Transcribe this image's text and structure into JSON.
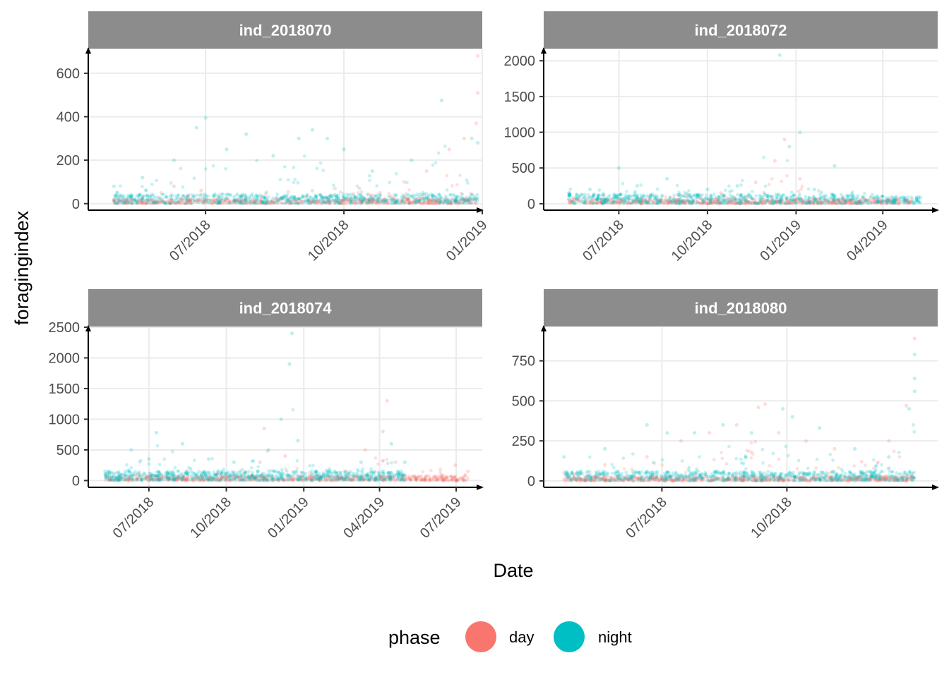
{
  "colors": {
    "day": "#F8766D",
    "night": "#00BFC4",
    "strip": "#8C8C8C",
    "grid": "#EBEBEB"
  },
  "labels": {
    "xlabel": "Date",
    "ylabel": "foragingindex"
  },
  "legend": {
    "title": "phase",
    "position": "bottom",
    "entries": [
      {
        "key": "day",
        "label": "day"
      },
      {
        "key": "night",
        "label": "night"
      }
    ]
  },
  "chart_data": [
    {
      "type": "scatter",
      "title": "ind_2018070",
      "xlim": [
        "2018-04-14",
        "2019-01-01"
      ],
      "ylim": [
        -30,
        710
      ],
      "yticks": [
        0,
        200,
        400,
        600
      ],
      "yticklabels": [
        "0",
        "200",
        "400",
        "600"
      ],
      "xticks": [
        "2018-07-01",
        "2018-10-01",
        "2019-01-01"
      ],
      "xticklabels": [
        "07/2018",
        "10/2018",
        "01/2019"
      ],
      "grid": true,
      "series": [
        {
          "name": "day",
          "points": [
            [
              "2018-05-01",
              20
            ],
            [
              "2018-05-20",
              30
            ],
            [
              "2018-06-10",
              80
            ],
            [
              "2018-06-28",
              60
            ],
            [
              "2018-07-10",
              40
            ],
            [
              "2018-07-25",
              35
            ],
            [
              "2018-08-10",
              45
            ],
            [
              "2018-08-25",
              55
            ],
            [
              "2018-09-10",
              60
            ],
            [
              "2018-09-25",
              70
            ],
            [
              "2018-10-10",
              80
            ],
            [
              "2018-10-25",
              50
            ],
            [
              "2018-11-10",
              100
            ],
            [
              "2018-11-25",
              150
            ],
            [
              "2018-12-10",
              250
            ],
            [
              "2018-12-20",
              300
            ],
            [
              "2018-12-28",
              370
            ],
            [
              "2018-12-29",
              510
            ],
            [
              "2018-12-29",
              680
            ]
          ]
        },
        {
          "name": "night",
          "points": [
            [
              "2018-05-01",
              80
            ],
            [
              "2018-05-20",
              120
            ],
            [
              "2018-06-10",
              200
            ],
            [
              "2018-06-25",
              350
            ],
            [
              "2018-07-01",
              395
            ],
            [
              "2018-07-15",
              250
            ],
            [
              "2018-07-28",
              320
            ],
            [
              "2018-08-15",
              220
            ],
            [
              "2018-09-01",
              300
            ],
            [
              "2018-09-10",
              340
            ],
            [
              "2018-09-20",
              300
            ],
            [
              "2018-10-01",
              250
            ],
            [
              "2018-10-20",
              150
            ],
            [
              "2018-11-15",
              200
            ],
            [
              "2018-12-05",
              475
            ],
            [
              "2018-12-25",
              300
            ],
            [
              "2018-12-29",
              280
            ]
          ]
        }
      ]
    },
    {
      "type": "scatter",
      "title": "ind_2018072",
      "xlim": [
        "2018-04-14",
        "2019-05-28"
      ],
      "ylim": [
        -90,
        2160
      ],
      "yticks": [
        0,
        500,
        1000,
        1500,
        2000
      ],
      "yticklabels": [
        "0",
        "500",
        "1000",
        "1500",
        "2000"
      ],
      "xticks": [
        "2018-07-01",
        "2018-10-01",
        "2019-01-01",
        "2019-04-01"
      ],
      "xticklabels": [
        "07/2018",
        "10/2018",
        "01/2019",
        "04/2019"
      ],
      "grid": true,
      "series": [
        {
          "name": "day",
          "points": [
            [
              "2018-05-10",
              60
            ],
            [
              "2018-06-15",
              120
            ],
            [
              "2018-07-20",
              100
            ],
            [
              "2018-09-01",
              120
            ],
            [
              "2018-10-15",
              150
            ],
            [
              "2018-11-20",
              300
            ],
            [
              "2018-12-10",
              600
            ],
            [
              "2018-12-20",
              900
            ],
            [
              "2019-01-05",
              350
            ],
            [
              "2019-02-20",
              60
            ],
            [
              "2019-03-20",
              80
            ],
            [
              "2019-05-01",
              60
            ]
          ]
        },
        {
          "name": "night",
          "points": [
            [
              "2018-05-10",
              150
            ],
            [
              "2018-06-01",
              200
            ],
            [
              "2018-07-01",
              500
            ],
            [
              "2018-07-20",
              250
            ],
            [
              "2018-08-20",
              350
            ],
            [
              "2018-10-01",
              200
            ],
            [
              "2018-11-01",
              250
            ],
            [
              "2018-12-15",
              2080
            ],
            [
              "2018-12-25",
              800
            ],
            [
              "2019-01-05",
              1000
            ],
            [
              "2019-01-20",
              200
            ],
            [
              "2019-02-10",
              530
            ],
            [
              "2019-03-01",
              120
            ],
            [
              "2019-04-15",
              100
            ],
            [
              "2019-05-10",
              90
            ]
          ]
        }
      ]
    },
    {
      "type": "scatter",
      "title": "ind_2018074",
      "xlim": [
        "2018-04-20",
        "2019-08-01"
      ],
      "ylim": [
        -110,
        2500
      ],
      "yticks": [
        0,
        500,
        1000,
        1500,
        2000,
        2500
      ],
      "yticklabels": [
        "0",
        "500",
        "1000",
        "1500",
        "2000",
        "2500"
      ],
      "xticks": [
        "2018-07-01",
        "2018-10-01",
        "2019-01-01",
        "2019-04-01",
        "2019-07-01"
      ],
      "xticklabels": [
        "07/2018",
        "10/2018",
        "01/2019",
        "04/2019",
        "07/2019"
      ],
      "grid": true,
      "series": [
        {
          "name": "day",
          "points": [
            [
              "2018-05-10",
              100
            ],
            [
              "2018-06-20",
              100
            ],
            [
              "2018-08-15",
              150
            ],
            [
              "2018-10-10",
              120
            ],
            [
              "2018-11-10",
              300
            ],
            [
              "2018-11-15",
              850
            ],
            [
              "2018-12-10",
              400
            ],
            [
              "2019-01-15",
              100
            ],
            [
              "2019-02-20",
              150
            ],
            [
              "2019-03-15",
              500
            ],
            [
              "2019-04-05",
              800
            ],
            [
              "2019-04-10",
              1300
            ],
            [
              "2019-04-20",
              300
            ],
            [
              "2019-06-30",
              250
            ],
            [
              "2019-07-01",
              0
            ],
            [
              "2019-07-15",
              150
            ]
          ]
        },
        {
          "name": "night",
          "points": [
            [
              "2018-05-10",
              150
            ],
            [
              "2018-06-10",
              500
            ],
            [
              "2018-07-01",
              350
            ],
            [
              "2018-07-10",
              780
            ],
            [
              "2018-08-10",
              600
            ],
            [
              "2018-09-10",
              350
            ],
            [
              "2018-10-10",
              300
            ],
            [
              "2018-11-20",
              500
            ],
            [
              "2018-12-05",
              1000
            ],
            [
              "2018-12-15",
              1900
            ],
            [
              "2018-12-18",
              2400
            ],
            [
              "2018-12-25",
              650
            ],
            [
              "2019-02-01",
              150
            ],
            [
              "2019-03-10",
              300
            ],
            [
              "2019-04-15",
              600
            ],
            [
              "2019-05-01",
              300
            ]
          ]
        }
      ]
    },
    {
      "type": "scatter",
      "title": "ind_2018080",
      "xlim": [
        "2018-04-05",
        "2019-01-20"
      ],
      "ylim": [
        -40,
        960
      ],
      "yticks": [
        0,
        250,
        500,
        750
      ],
      "yticklabels": [
        "0",
        "250",
        "500",
        "750"
      ],
      "xticks": [
        "2018-07-01",
        "2018-10-01"
      ],
      "xticklabels": [
        "07/2018",
        "10/2018"
      ],
      "grid": true,
      "series": [
        {
          "name": "day",
          "points": [
            [
              "2018-04-20",
              50
            ],
            [
              "2018-05-20",
              100
            ],
            [
              "2018-06-20",
              150
            ],
            [
              "2018-07-15",
              250
            ],
            [
              "2018-08-05",
              300
            ],
            [
              "2018-08-25",
              350
            ],
            [
              "2018-09-10",
              460
            ],
            [
              "2018-09-15",
              480
            ],
            [
              "2018-09-25",
              300
            ],
            [
              "2018-10-15",
              250
            ],
            [
              "2018-11-05",
              200
            ],
            [
              "2018-11-25",
              120
            ],
            [
              "2018-12-15",
              250
            ],
            [
              "2018-12-28",
              470
            ],
            [
              "2019-01-03",
              890
            ]
          ]
        },
        {
          "name": "night",
          "points": [
            [
              "2018-04-20",
              150
            ],
            [
              "2018-05-20",
              200
            ],
            [
              "2018-06-20",
              350
            ],
            [
              "2018-07-05",
              300
            ],
            [
              "2018-07-25",
              300
            ],
            [
              "2018-08-15",
              350
            ],
            [
              "2018-09-05",
              300
            ],
            [
              "2018-09-28",
              450
            ],
            [
              "2018-10-05",
              400
            ],
            [
              "2018-10-25",
              330
            ],
            [
              "2018-11-20",
              200
            ],
            [
              "2018-12-15",
              150
            ],
            [
              "2018-12-30",
              450
            ],
            [
              "2019-01-03",
              790
            ],
            [
              "2019-01-03",
              640
            ],
            [
              "2019-01-03",
              560
            ]
          ]
        }
      ]
    }
  ]
}
